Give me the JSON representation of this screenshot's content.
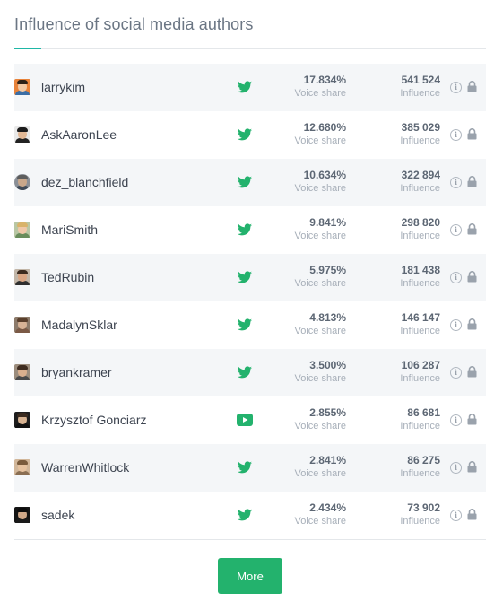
{
  "title": "Influence of social media authors",
  "colors": {
    "accent": "#1fb7a6",
    "brand_green": "#23b26d",
    "row_shade": "#f4f6f8"
  },
  "authors": [
    {
      "name": "larrykim",
      "platform_icon": "twitter-icon",
      "voice_share": "17.834%",
      "voice_share_label": "Voice share",
      "influence": "541 524",
      "influence_label": "Influence"
    },
    {
      "name": "AskAaronLee",
      "platform_icon": "twitter-icon",
      "voice_share": "12.680%",
      "voice_share_label": "Voice share",
      "influence": "385 029",
      "influence_label": "Influence"
    },
    {
      "name": "dez_blanchfield",
      "platform_icon": "twitter-icon",
      "voice_share": "10.634%",
      "voice_share_label": "Voice share",
      "influence": "322 894",
      "influence_label": "Influence"
    },
    {
      "name": "MariSmith",
      "platform_icon": "twitter-icon",
      "voice_share": "9.841%",
      "voice_share_label": "Voice share",
      "influence": "298 820",
      "influence_label": "Influence"
    },
    {
      "name": "TedRubin",
      "platform_icon": "twitter-icon",
      "voice_share": "5.975%",
      "voice_share_label": "Voice share",
      "influence": "181 438",
      "influence_label": "Influence"
    },
    {
      "name": "MadalynSklar",
      "platform_icon": "twitter-icon",
      "voice_share": "4.813%",
      "voice_share_label": "Voice share",
      "influence": "146 147",
      "influence_label": "Influence"
    },
    {
      "name": "bryankramer",
      "platform_icon": "twitter-icon",
      "voice_share": "3.500%",
      "voice_share_label": "Voice share",
      "influence": "106 287",
      "influence_label": "Influence"
    },
    {
      "name": "Krzysztof Gonciarz",
      "platform_icon": "youtube-icon",
      "voice_share": "2.855%",
      "voice_share_label": "Voice share",
      "influence": "86 681",
      "influence_label": "Influence"
    },
    {
      "name": "WarrenWhitlock",
      "platform_icon": "twitter-icon",
      "voice_share": "2.841%",
      "voice_share_label": "Voice share",
      "influence": "86 275",
      "influence_label": "Influence"
    },
    {
      "name": "sadek",
      "platform_icon": "twitter-icon",
      "voice_share": "2.434%",
      "voice_share_label": "Voice share",
      "influence": "73 902",
      "influence_label": "Influence"
    }
  ],
  "more_button": "More"
}
